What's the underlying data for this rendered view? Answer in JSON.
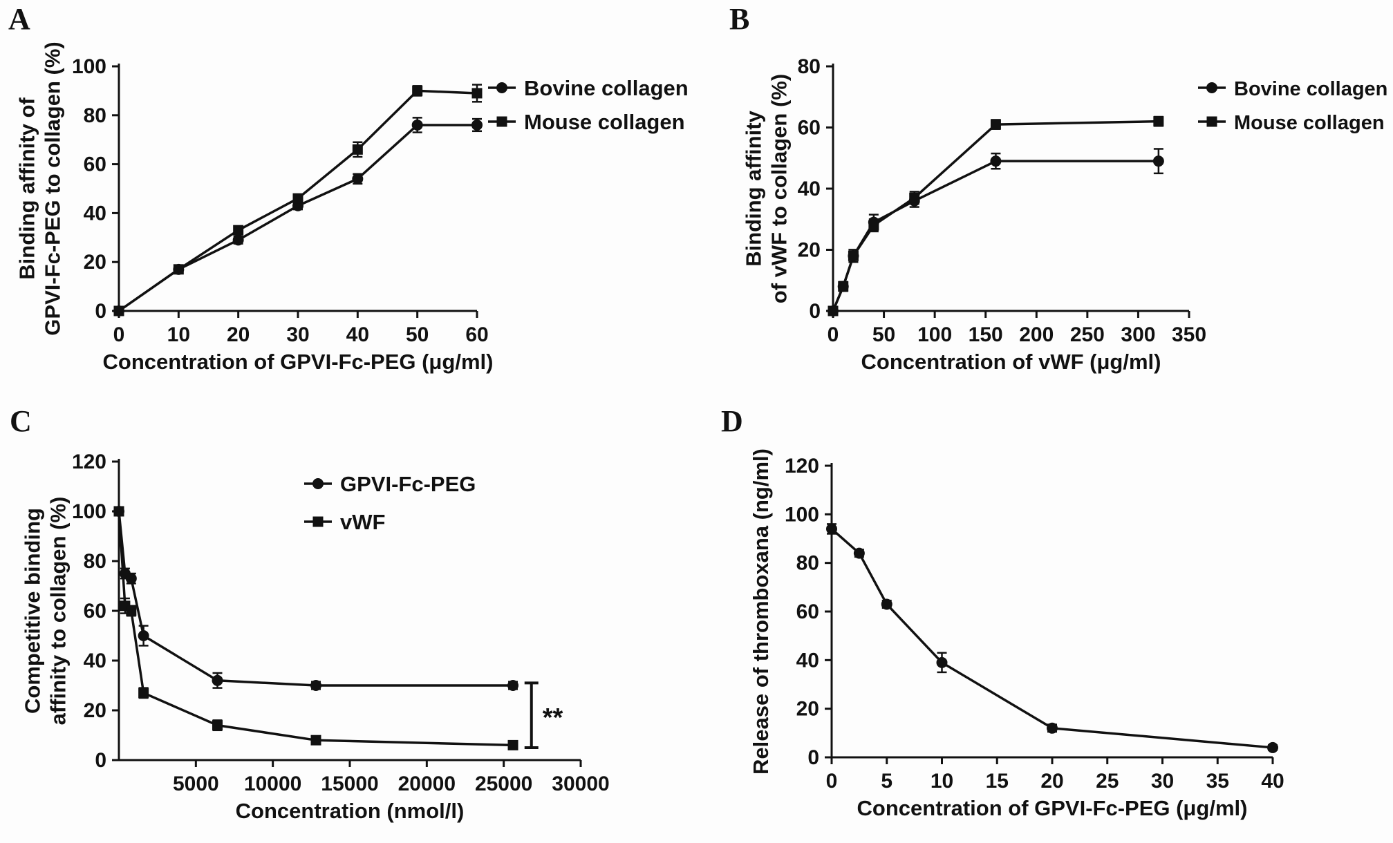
{
  "panel_labels": [
    "A",
    "B",
    "C",
    "D"
  ],
  "colors": {
    "foreground": "#111111",
    "background": "#fdfdfd"
  },
  "chart_data": [
    {
      "panel": "A",
      "type": "line",
      "title": "",
      "xlabel": "Concentration of GPVI-Fc-PEG (μg/ml)",
      "ylabel_lines": [
        "Binding affinity of",
        "GPVI-Fc-PEG to collagen (%)"
      ],
      "xlim": [
        0,
        60
      ],
      "ylim": [
        0,
        100
      ],
      "xticks": [
        0,
        10,
        20,
        30,
        40,
        50,
        60
      ],
      "yticks": [
        0,
        20,
        40,
        60,
        80,
        100
      ],
      "grid": false,
      "legend_position": "right-outside",
      "series": [
        {
          "name": "Bovine collagen",
          "marker": "circle",
          "x": [
            0,
            10,
            20,
            30,
            40,
            50,
            60
          ],
          "y": [
            0,
            17,
            29,
            43,
            54,
            76,
            76
          ],
          "err": [
            0,
            1.5,
            1.5,
            1.5,
            2,
            3,
            2.5
          ]
        },
        {
          "name": "Mouse collagen",
          "marker": "square",
          "x": [
            0,
            10,
            20,
            30,
            40,
            50,
            60
          ],
          "y": [
            0,
            17,
            33,
            46,
            66,
            90,
            89
          ],
          "err": [
            0,
            1.5,
            1.5,
            1.5,
            3,
            2,
            3.5
          ]
        }
      ]
    },
    {
      "panel": "B",
      "type": "line",
      "title": "",
      "xlabel": "Concentration of vWF (μg/ml)",
      "ylabel_lines": [
        "Binding affinity",
        "of vWF to collagen (%)"
      ],
      "xlim": [
        0,
        350
      ],
      "ylim": [
        0,
        80
      ],
      "xticks": [
        0,
        50,
        100,
        150,
        200,
        250,
        300,
        350
      ],
      "yticks": [
        0,
        20,
        40,
        60,
        80
      ],
      "grid": false,
      "legend_position": "right-outside",
      "series": [
        {
          "name": "Bovine collagen",
          "marker": "circle",
          "x": [
            0,
            10,
            20,
            40,
            80,
            160,
            320
          ],
          "y": [
            0,
            8,
            18,
            29,
            36,
            49,
            49
          ],
          "err": [
            0,
            1.5,
            2,
            2.5,
            2,
            2.5,
            4
          ]
        },
        {
          "name": "Mouse collagen",
          "marker": "square",
          "x": [
            0,
            10,
            20,
            40,
            80,
            160,
            320
          ],
          "y": [
            0,
            8,
            18,
            28,
            37,
            61,
            62
          ],
          "err": [
            0,
            1.5,
            2,
            2,
            2,
            1.5,
            1.5
          ]
        }
      ]
    },
    {
      "panel": "C",
      "type": "line",
      "title": "",
      "xlabel": "Concentration (nmol/l)",
      "ylabel_lines": [
        "Competitive binding",
        "affinity to collagen (%)"
      ],
      "xlim": [
        0,
        30000
      ],
      "ylim": [
        0,
        120
      ],
      "xticks": [
        5000,
        10000,
        15000,
        20000,
        25000,
        30000
      ],
      "yticks": [
        0,
        20,
        40,
        60,
        80,
        100,
        120
      ],
      "grid": false,
      "legend_position": "inside-top-right",
      "series": [
        {
          "name": "GPVI-Fc-PEG",
          "marker": "circle",
          "x": [
            0,
            400,
            800,
            1600,
            6400,
            12800,
            25600
          ],
          "y": [
            100,
            75,
            73,
            50,
            32,
            30,
            30
          ],
          "err": [
            0,
            2,
            2,
            4,
            3,
            1.5,
            1.5
          ]
        },
        {
          "name": "vWF",
          "marker": "square",
          "x": [
            0,
            400,
            800,
            1600,
            6400,
            12800,
            25600
          ],
          "y": [
            100,
            62,
            60,
            27,
            14,
            8,
            6
          ],
          "err": [
            0,
            3,
            2,
            2,
            2,
            1.5,
            1.5
          ]
        }
      ],
      "annotation": {
        "text": "**",
        "x": 26800,
        "y_top": 31,
        "y_bottom": 5
      }
    },
    {
      "panel": "D",
      "type": "line",
      "title": "",
      "xlabel": "Concentration of GPVI-Fc-PEG (μg/ml)",
      "ylabel_lines": [
        "Release of thromboxana (ng/ml)"
      ],
      "xlim": [
        0,
        40
      ],
      "ylim": [
        0,
        120
      ],
      "xticks": [
        0,
        5,
        10,
        15,
        20,
        25,
        30,
        35,
        40
      ],
      "yticks": [
        0,
        20,
        40,
        60,
        80,
        100,
        120
      ],
      "grid": false,
      "legend_position": "none",
      "series": [
        {
          "name": "GPVI-Fc-PEG",
          "marker": "circle",
          "x": [
            0,
            2.5,
            5,
            10,
            20,
            40
          ],
          "y": [
            94,
            84,
            63,
            39,
            12,
            4
          ],
          "err": [
            2,
            1.5,
            1.5,
            4,
            1.5,
            1
          ]
        }
      ]
    }
  ]
}
